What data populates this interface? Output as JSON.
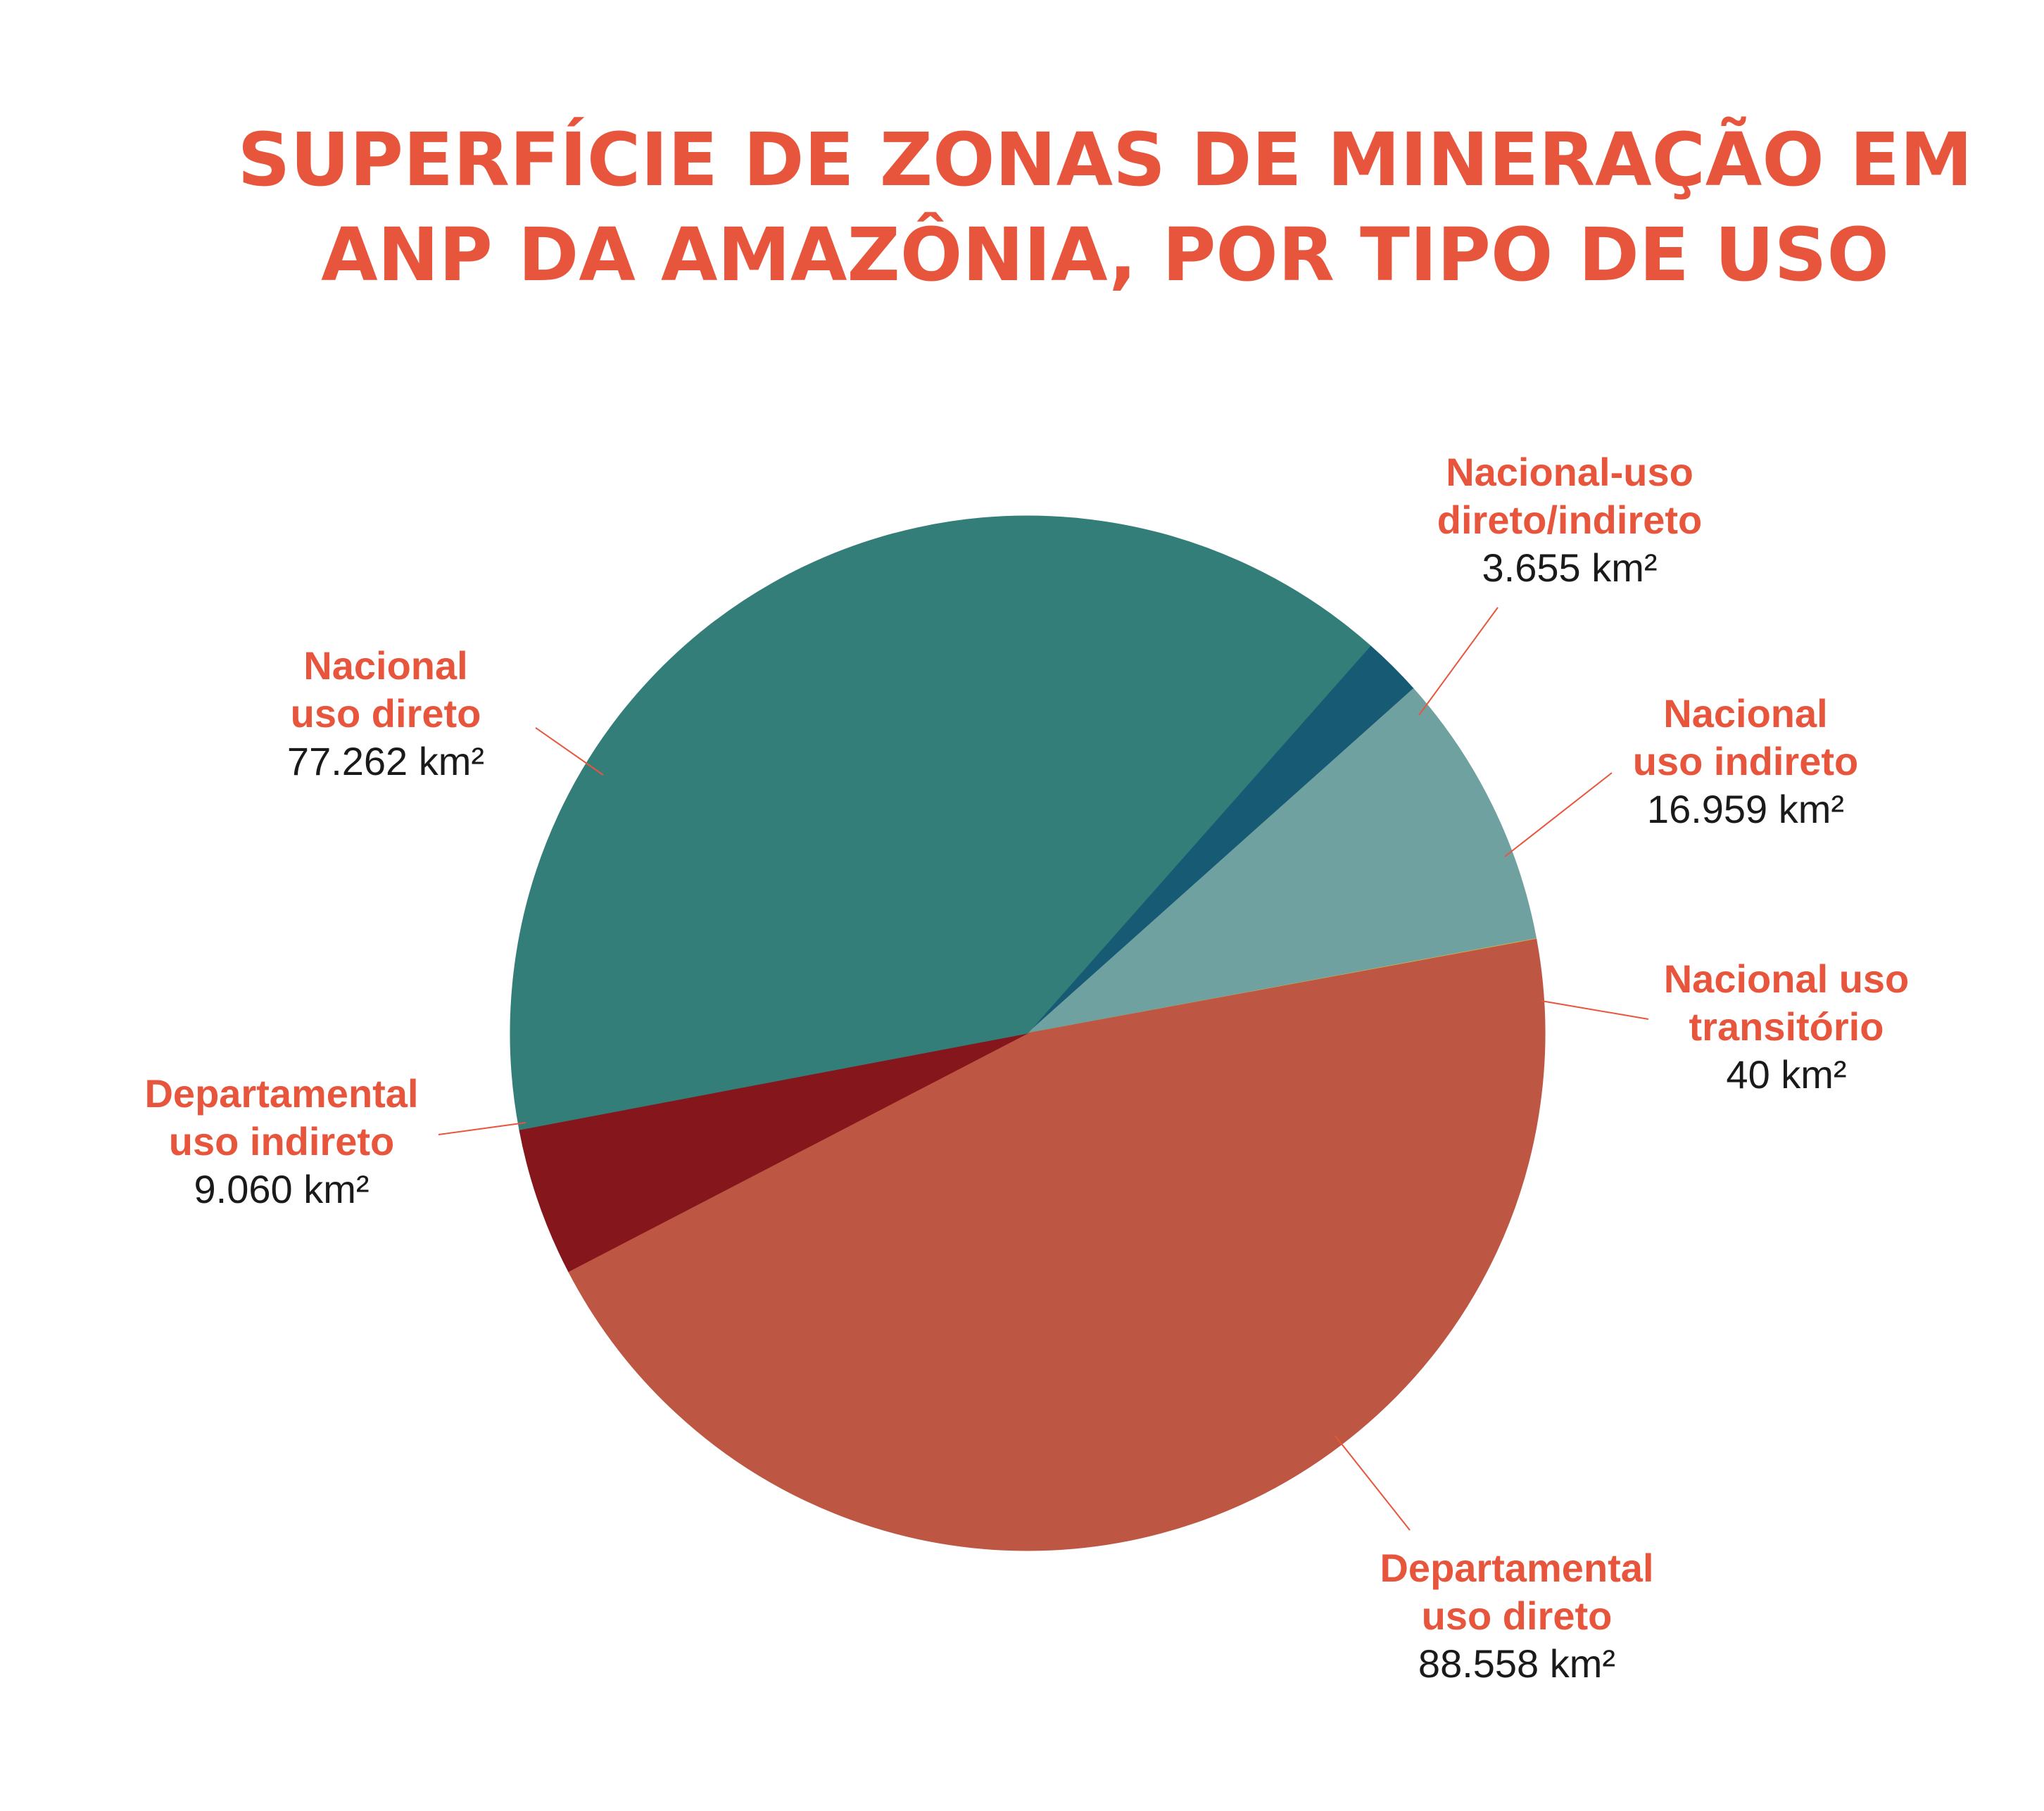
{
  "chart_data": {
    "type": "pie",
    "title": "SUPERFÍCIE DE ZONAS DE MINERAÇÃO EM ANP DA AMAZÔNIA, POR TIPO DE USO",
    "title_lines": [
      "SUPERFÍCIE DE ZONAS DE MINERAÇÃO EM",
      "ANP DA AMAZÔNIA, POR TIPO DE USO"
    ],
    "unit": "km²",
    "slices": [
      {
        "key": "nacional-uso-direto-indireto",
        "label_lines": [
          "Nacional-uso",
          "direto/indireto"
        ],
        "value": 3655,
        "value_label": "3.655 km²",
        "color": "#175a74"
      },
      {
        "key": "nacional-uso-indireto",
        "label_lines": [
          "Nacional",
          "uso indireto"
        ],
        "value": 16959,
        "value_label": "16.959 km²",
        "color": "#70a1a1"
      },
      {
        "key": "nacional-uso-transitorio",
        "label_lines": [
          "Nacional uso",
          "transitório"
        ],
        "value": 40,
        "value_label": "40 km²",
        "color": "#d5b04a"
      },
      {
        "key": "departamental-uso-direto",
        "label_lines": [
          "Departamental",
          "uso direto"
        ],
        "value": 88558,
        "value_label": "88.558 km²",
        "color": "#bd5744"
      },
      {
        "key": "departamental-uso-indireto",
        "label_lines": [
          "Departamental",
          "uso indireto"
        ],
        "value": 9060,
        "value_label": "9.060 km²",
        "color": "#85171c"
      },
      {
        "key": "nacional-uso-direto",
        "label_lines": [
          "Nacional",
          "uso direto"
        ],
        "value": 77262,
        "value_label": "77.262 km²",
        "color": "#347e7a"
      }
    ]
  }
}
